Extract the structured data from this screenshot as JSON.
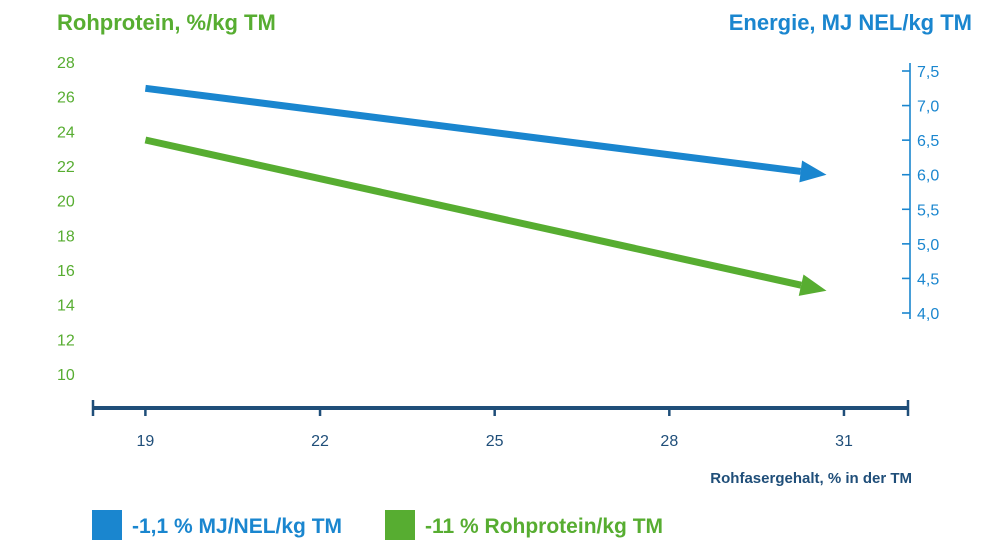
{
  "chart_data": {
    "type": "line",
    "title_left": "Rohprotein, %/kg TM",
    "title_right": "Energie, MJ NEL/kg TM",
    "xlabel": "Rohfasergehalt, % in der TM",
    "x_ticks": [
      19,
      22,
      25,
      28,
      31
    ],
    "xlim": [
      18.1,
      32.1
    ],
    "left_ticks": [
      10,
      12,
      14,
      16,
      18,
      20,
      22,
      24,
      26,
      28
    ],
    "left_ylim": [
      10,
      28
    ],
    "right_ticks": [
      "4,0",
      "4,5",
      "5,0",
      "5,5",
      "6,0",
      "6,5",
      "7,0",
      "7,5"
    ],
    "right_tick_values": [
      4.0,
      4.5,
      5.0,
      5.5,
      6.0,
      6.5,
      7.0,
      7.5
    ],
    "right_ylim": [
      4.0,
      7.5
    ],
    "grid": true,
    "series": [
      {
        "name": "-1,1 % MJ/NEL/kg TM",
        "axis": "right",
        "color": "#1a86cf",
        "x": [
          19,
          30.7
        ],
        "y": [
          7.25,
          6.0
        ]
      },
      {
        "name": "-11 % Rohprotein/kg TM",
        "axis": "left",
        "color": "#57ad31",
        "x": [
          19,
          30.7
        ],
        "y": [
          23.5,
          14.8
        ]
      }
    ],
    "colors": {
      "green": "#57ad31",
      "blue": "#1a86cf",
      "axis": "#1f4e79"
    }
  }
}
